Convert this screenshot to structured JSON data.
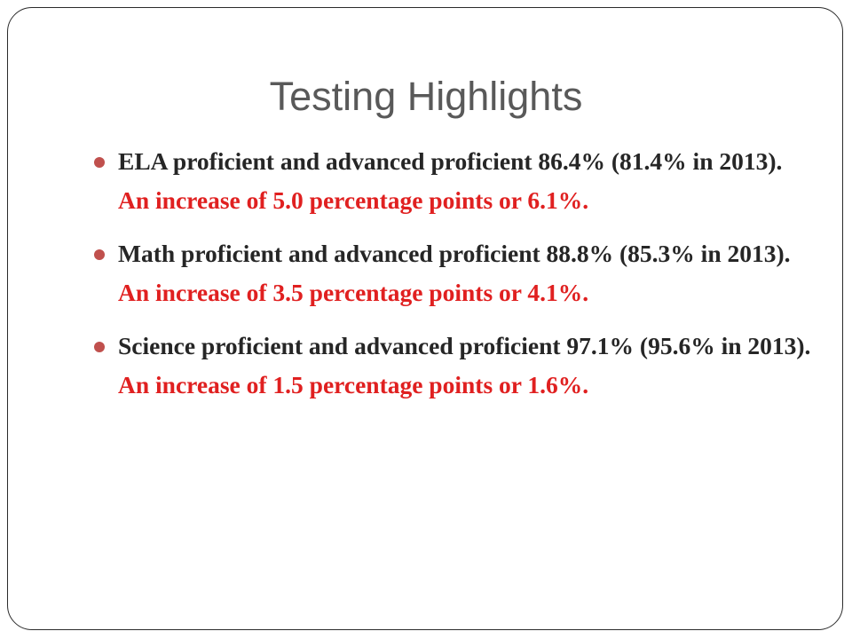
{
  "slide": {
    "title": "Testing Highlights",
    "accent_color": "#e02020",
    "bullet_color": "#c0504d",
    "bullets": [
      {
        "lead": "ELA proficient and advanced proficient 86.4% (81.4% in 2013). ",
        "highlight": "An increase of 5.0 percentage points or 6.1%."
      },
      {
        "lead": "Math proficient and advanced proficient 88.8% (85.3% in 2013). ",
        "highlight": "An increase of 3.5 percentage points or 4.1%."
      },
      {
        "lead": "Science proficient and advanced proficient 97.1% (95.6% in 2013). ",
        "highlight": "An increase of 1.5 percentage points or 1.6%."
      }
    ]
  }
}
